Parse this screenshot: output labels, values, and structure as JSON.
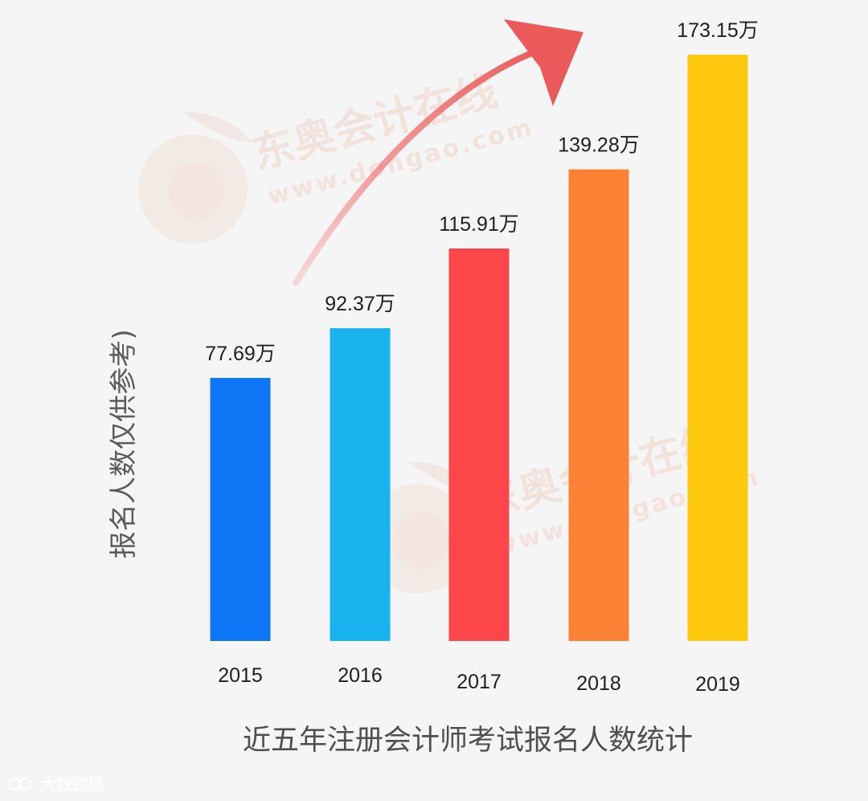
{
  "chart_data": {
    "type": "bar",
    "categories": [
      "2015",
      "2016",
      "2017",
      "2018",
      "2019"
    ],
    "values": [
      77.69,
      92.37,
      115.91,
      139.28,
      173.15
    ],
    "value_labels": [
      "77.69万",
      "92.37万",
      "115.91万",
      "139.28万",
      "173.15万"
    ],
    "ylabel": "报名人数仅供参考)",
    "xlabel": "近五年注册会计师考试报名人数统计",
    "bar_colors": [
      "#0d76f5",
      "#18b3ef",
      "#fd4649",
      "#fb8134",
      "#fdc80e"
    ],
    "ylim": [
      0,
      173.15
    ],
    "grid": false,
    "legend": "none"
  },
  "watermark": {
    "text_cn": "东奥会计在线",
    "text_url": "www.dongao.com",
    "color": "#e7b79f"
  },
  "arrow_color": "#ea5a5b",
  "source_badge": "大数跨境"
}
